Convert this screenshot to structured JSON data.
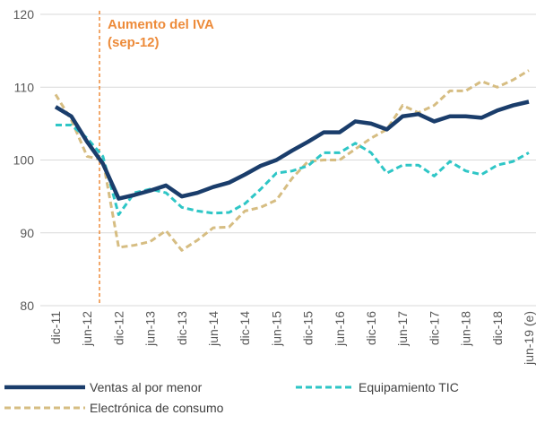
{
  "chart_data": {
    "type": "line",
    "annotation": [
      "Aumento del IVA",
      "(sep-12)"
    ],
    "categories": [
      "dic-11",
      null,
      "jun-12",
      null,
      "dic-12",
      null,
      "jun-13",
      null,
      "dic-13",
      null,
      "jun-14",
      null,
      "dic-14",
      null,
      "jun-15",
      null,
      "dic-15",
      null,
      "jun-16",
      null,
      "dic-16",
      null,
      "jun-17",
      null,
      "dic-17",
      null,
      "jun-18",
      null,
      "dic-18",
      null,
      "jun-19 (e)"
    ],
    "series": [
      {
        "name": "Ventas al por menor",
        "color": "#1a3d6b",
        "values": [
          107.3,
          106,
          102.5,
          99.5,
          94.7,
          95.2,
          95.8,
          96.5,
          95,
          95.5,
          96.3,
          96.9,
          98,
          99.2,
          100,
          101.3,
          102.5,
          103.8,
          103.8,
          105.3,
          105,
          104.2,
          106,
          106.3,
          105.3,
          106,
          106,
          105.8,
          106.8,
          107.5,
          108
        ]
      },
      {
        "name": "Equipamiento TIC",
        "color": "#2ec6c6",
        "values": [
          104.8,
          104.8,
          103,
          100.5,
          92.5,
          95.5,
          96,
          95.5,
          93.5,
          93,
          92.7,
          92.8,
          94,
          96,
          98.2,
          98.5,
          99.2,
          101,
          101,
          102.3,
          101,
          98.2,
          99.3,
          99.3,
          97.8,
          99.8,
          98.5,
          98,
          99.3,
          99.8,
          101
        ]
      },
      {
        "name": "Electrónica de consumo",
        "color": "#d6bd82",
        "values": [
          109,
          105.5,
          100.5,
          100,
          88,
          88.3,
          88.8,
          90.3,
          87.6,
          89,
          90.7,
          90.8,
          93,
          93.5,
          94.5,
          97.5,
          99.8,
          100,
          100,
          101.5,
          103,
          104.2,
          107.5,
          106.5,
          107.5,
          109.5,
          109.5,
          110.8,
          110,
          111,
          112.3
        ]
      }
    ],
    "ylim": [
      80,
      120
    ],
    "yticks": [
      80,
      90,
      100,
      110,
      120
    ],
    "grid": true
  }
}
